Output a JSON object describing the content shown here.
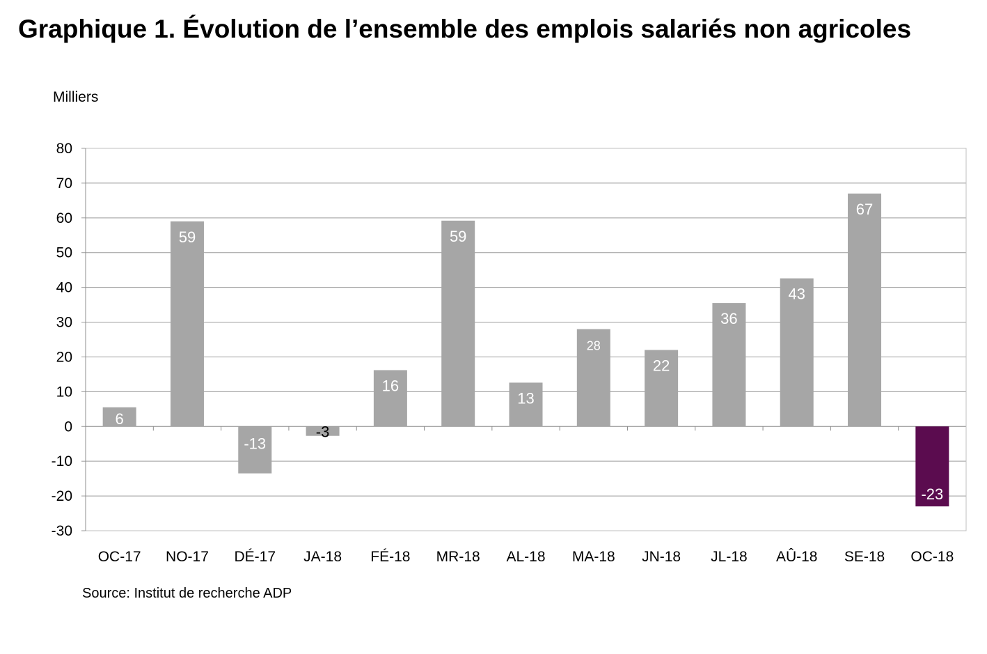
{
  "title": "Graphique 1. Évolution de l’ensemble des emplois salariés non agricoles",
  "unit_label": "Milliers",
  "source": "Source: Institut de recherche ADP",
  "colors": {
    "bar_default": "#a6a6a6",
    "bar_highlight": "#5b0c4f",
    "grid": "#9a9a9a",
    "frame": "#bfbfbf",
    "label_light": "#ffffff",
    "label_dark": "#000000"
  },
  "chart_data": {
    "type": "bar",
    "categories": [
      "OC-17",
      "NO-17",
      "DÉ-17",
      "JA-18",
      "FÉ-18",
      "MR-18",
      "AL-18",
      "MA-18",
      "JN-18",
      "JL-18",
      "AÛ-18",
      "SE-18",
      "OC-18"
    ],
    "values": [
      5.5,
      59,
      -13.5,
      -2.7,
      16.2,
      59.2,
      12.6,
      28,
      22,
      35.5,
      42.6,
      67,
      -23
    ],
    "data_labels": [
      "6",
      "59",
      "-13",
      "-3",
      "16",
      "59",
      "13",
      "28",
      "22",
      "36",
      "43",
      "67",
      "-23"
    ],
    "highlight_index": 12,
    "yticks": [
      "80",
      "70",
      "60",
      "50",
      "40",
      "30",
      "20",
      "10",
      "0",
      "-10",
      "-20",
      "-30"
    ],
    "ylim": [
      -30,
      80
    ],
    "ystep": 10,
    "grid": true,
    "ylabel": "Milliers",
    "xlabel": ""
  }
}
